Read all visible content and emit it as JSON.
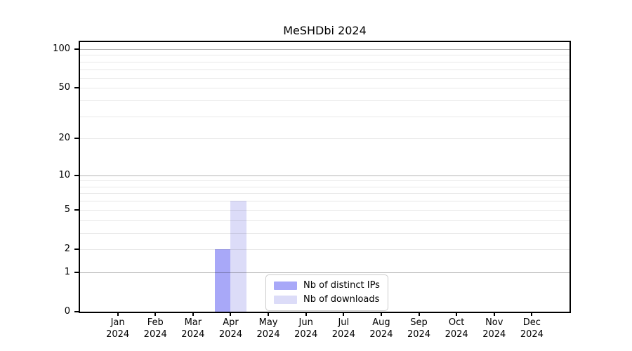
{
  "chart_data": {
    "type": "bar",
    "title": "MeSHDbi 2024",
    "categories": [
      "Jan",
      "Feb",
      "Mar",
      "Apr",
      "May",
      "Jun",
      "Jul",
      "Aug",
      "Sep",
      "Oct",
      "Nov",
      "Dec"
    ],
    "category_year": "2024",
    "series": [
      {
        "name": "Nb of distinct IPs",
        "color": "#a8a8f8",
        "values": [
          0,
          0,
          0,
          2,
          0,
          0,
          0,
          0,
          0,
          0,
          0,
          0
        ]
      },
      {
        "name": "Nb of downloads",
        "color": "#dcdcf8",
        "values": [
          0,
          0,
          0,
          6,
          0,
          0,
          0,
          0,
          0,
          0,
          0,
          0
        ]
      }
    ],
    "xlabel": "",
    "ylabel": "",
    "yscale": "log1p",
    "ylim": [
      0,
      113.3
    ],
    "yticks": [
      0,
      1,
      2,
      5,
      10,
      20,
      50,
      100
    ],
    "decade_gridlines": [
      1,
      10,
      100
    ],
    "minor_yticks": [
      3,
      4,
      6,
      7,
      8,
      9,
      30,
      40,
      60,
      70,
      80,
      90
    ],
    "grid": true,
    "legend_position": "lower center"
  }
}
